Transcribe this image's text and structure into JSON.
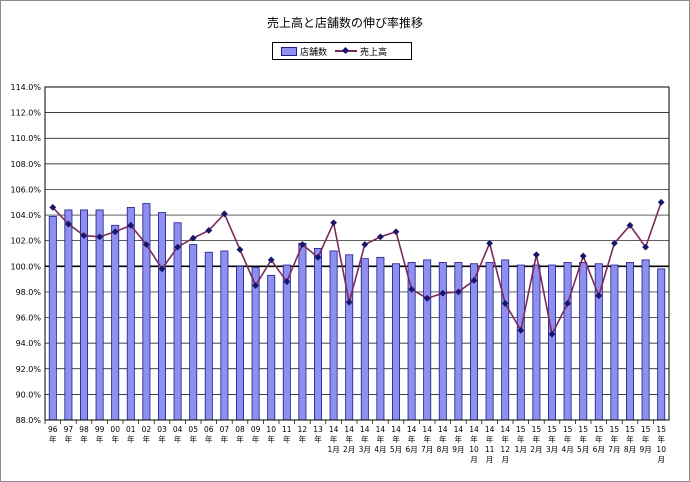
{
  "chart_data": {
    "type": "bar+line",
    "title": "売上高と店舗数の伸び率推移",
    "legend_position": "top-center",
    "ylim": [
      88.0,
      114.0
    ],
    "y_ticks": [
      "88.0%",
      "90.0%",
      "92.0%",
      "94.0%",
      "96.0%",
      "98.0%",
      "100.0%",
      "102.0%",
      "104.0%",
      "106.0%",
      "108.0%",
      "110.0%",
      "112.0%",
      "114.0%"
    ],
    "categories": [
      [
        "96",
        "年"
      ],
      [
        "97",
        "年"
      ],
      [
        "98",
        "年"
      ],
      [
        "99",
        "年"
      ],
      [
        "00",
        "年"
      ],
      [
        "01",
        "年"
      ],
      [
        "02",
        "年"
      ],
      [
        "03",
        "年"
      ],
      [
        "04",
        "年"
      ],
      [
        "05",
        "年"
      ],
      [
        "06",
        "年"
      ],
      [
        "07",
        "年"
      ],
      [
        "08",
        "年"
      ],
      [
        "09",
        "年"
      ],
      [
        "10",
        "年"
      ],
      [
        "11",
        "年"
      ],
      [
        "12",
        "年"
      ],
      [
        "13",
        "年"
      ],
      [
        "14",
        "年",
        "1月"
      ],
      [
        "14",
        "年",
        "2月"
      ],
      [
        "14",
        "年",
        "3月"
      ],
      [
        "14",
        "年",
        "4月"
      ],
      [
        "14",
        "年",
        "5月"
      ],
      [
        "14",
        "年",
        "6月"
      ],
      [
        "14",
        "年",
        "7月"
      ],
      [
        "14",
        "年",
        "8月"
      ],
      [
        "14",
        "年",
        "9月"
      ],
      [
        "14",
        "年",
        "10",
        "月"
      ],
      [
        "14",
        "年",
        "11",
        "月"
      ],
      [
        "14",
        "年",
        "12",
        "月"
      ],
      [
        "15",
        "年",
        "1月"
      ],
      [
        "15",
        "年",
        "2月"
      ],
      [
        "15",
        "年",
        "3月"
      ],
      [
        "15",
        "年",
        "4月"
      ],
      [
        "15",
        "年",
        "5月"
      ],
      [
        "15",
        "年",
        "6月"
      ],
      [
        "15",
        "年",
        "7月"
      ],
      [
        "15",
        "年",
        "8月"
      ],
      [
        "15",
        "年",
        "9月"
      ],
      [
        "15",
        "年",
        "10",
        "月"
      ]
    ],
    "series": [
      {
        "name": "店舗数",
        "type": "bar",
        "color": "#8f8ff0",
        "edge_color": "#1c1c8c",
        "values": [
          103.9,
          104.4,
          104.4,
          104.4,
          103.2,
          104.6,
          104.9,
          104.2,
          103.4,
          101.7,
          101.1,
          101.2,
          100.0,
          99.9,
          99.3,
          100.1,
          101.8,
          101.4,
          101.2,
          100.9,
          100.6,
          100.7,
          100.2,
          100.3,
          100.5,
          100.3,
          100.3,
          100.2,
          100.3,
          100.5,
          100.1,
          100.1,
          100.1,
          100.3,
          100.3,
          100.2,
          100.1,
          100.3,
          100.5,
          99.8
        ]
      },
      {
        "name": "売上高",
        "type": "line",
        "color": "#7b2a5c",
        "marker_color": "#16166b",
        "values": [
          104.6,
          103.3,
          102.4,
          102.3,
          102.7,
          103.2,
          101.7,
          99.8,
          101.5,
          102.2,
          102.8,
          104.1,
          101.3,
          98.5,
          100.5,
          98.8,
          101.7,
          100.7,
          103.4,
          97.2,
          101.7,
          102.3,
          102.7,
          98.2,
          97.5,
          97.9,
          98.0,
          98.9,
          101.8,
          97.1,
          95.0,
          100.9,
          94.7,
          97.1,
          100.8,
          97.7,
          101.8,
          103.2,
          101.5,
          105.0
        ]
      }
    ]
  }
}
